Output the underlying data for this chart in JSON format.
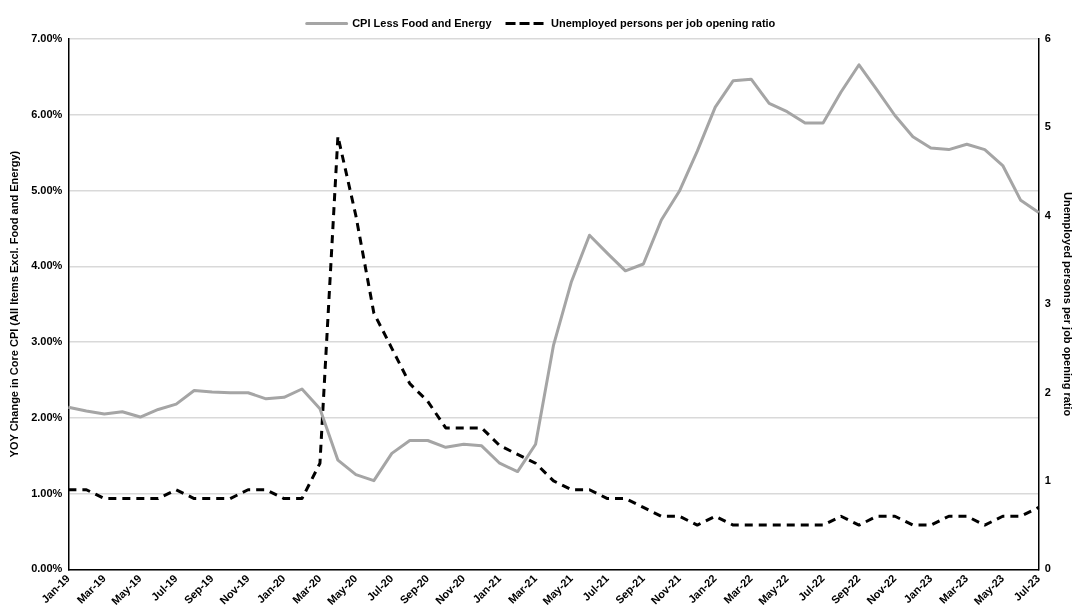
{
  "chart_data": {
    "type": "line",
    "ylabel": "YOY Change in Core CPI (All Items Excl. Food and Energy)",
    "y2label": "Unemployed persons per job opening ratio",
    "categories": [
      "Jan-19",
      null,
      "Mar-19",
      null,
      "May-19",
      null,
      "Jul-19",
      null,
      "Sep-19",
      null,
      "Nov-19",
      null,
      "Jan-20",
      null,
      "Mar-20",
      null,
      "May-20",
      null,
      "Jul-20",
      null,
      "Sep-20",
      null,
      "Nov-20",
      null,
      "Jan-21",
      null,
      "Mar-21",
      null,
      "May-21",
      null,
      "Jul-21",
      null,
      "Sep-21",
      null,
      "Nov-21",
      null,
      "Jan-22",
      null,
      "Mar-22",
      null,
      "May-22",
      null,
      "Jul-22",
      null,
      "Sep-22",
      null,
      "Nov-22",
      null,
      "Jan-23",
      null,
      "Mar-23",
      null,
      "May-23",
      null,
      "Jul-23"
    ],
    "series": [
      {
        "name": "CPI Less Food and Energy",
        "color": "#a5a5a5",
        "line_style": "solid",
        "values": [
          2.14,
          2.09,
          2.05,
          2.08,
          2.01,
          2.11,
          2.18,
          2.36,
          2.34,
          2.33,
          2.33,
          2.25,
          2.27,
          2.38,
          2.12,
          1.44,
          1.25,
          1.17,
          1.53,
          1.7,
          1.7,
          1.61,
          1.65,
          1.63,
          1.4,
          1.29,
          1.65,
          2.96,
          3.8,
          4.41,
          4.17,
          3.94,
          4.03,
          4.61,
          4.99,
          5.52,
          6.1,
          6.45,
          6.47,
          6.15,
          6.04,
          5.89,
          5.89,
          6.3,
          6.66,
          6.33,
          5.99,
          5.71,
          5.56,
          5.54,
          5.61,
          5.54,
          5.33,
          4.87,
          4.71
        ]
      },
      {
        "name": "Unemployed persons per job opening ratio",
        "color": "#000000",
        "line_style": "dashed",
        "axis": "y2",
        "values": [
          0.9,
          0.9,
          0.8,
          0.8,
          0.8,
          0.8,
          0.9,
          0.8,
          0.8,
          0.8,
          0.9,
          0.9,
          0.8,
          0.8,
          1.2,
          4.9,
          4.0,
          2.9,
          2.5,
          2.1,
          1.9,
          1.6,
          1.6,
          1.6,
          1.4,
          1.3,
          1.2,
          1.0,
          0.9,
          0.9,
          0.8,
          0.8,
          0.7,
          0.6,
          0.6,
          0.5,
          0.6,
          0.5,
          0.5,
          0.5,
          0.5,
          0.5,
          0.5,
          0.6,
          0.5,
          0.6,
          0.6,
          0.5,
          0.5,
          0.6,
          0.6,
          0.5,
          0.6,
          0.6,
          0.7
        ]
      }
    ],
    "ylim": [
      0,
      7
    ],
    "yticks": [
      {
        "value": 0,
        "label": "0.00%"
      },
      {
        "value": 1,
        "label": "1.00%"
      },
      {
        "value": 2,
        "label": "2.00%"
      },
      {
        "value": 3,
        "label": "3.00%"
      },
      {
        "value": 4,
        "label": "4.00%"
      },
      {
        "value": 5,
        "label": "5.00%"
      },
      {
        "value": 6,
        "label": "6.00%"
      },
      {
        "value": 7,
        "label": "7.00%"
      }
    ],
    "y2lim": [
      0,
      6
    ],
    "y2ticks": [
      0,
      1,
      2,
      3,
      4,
      5,
      6
    ],
    "grid": "y",
    "legend": "top",
    "marker": "none"
  }
}
